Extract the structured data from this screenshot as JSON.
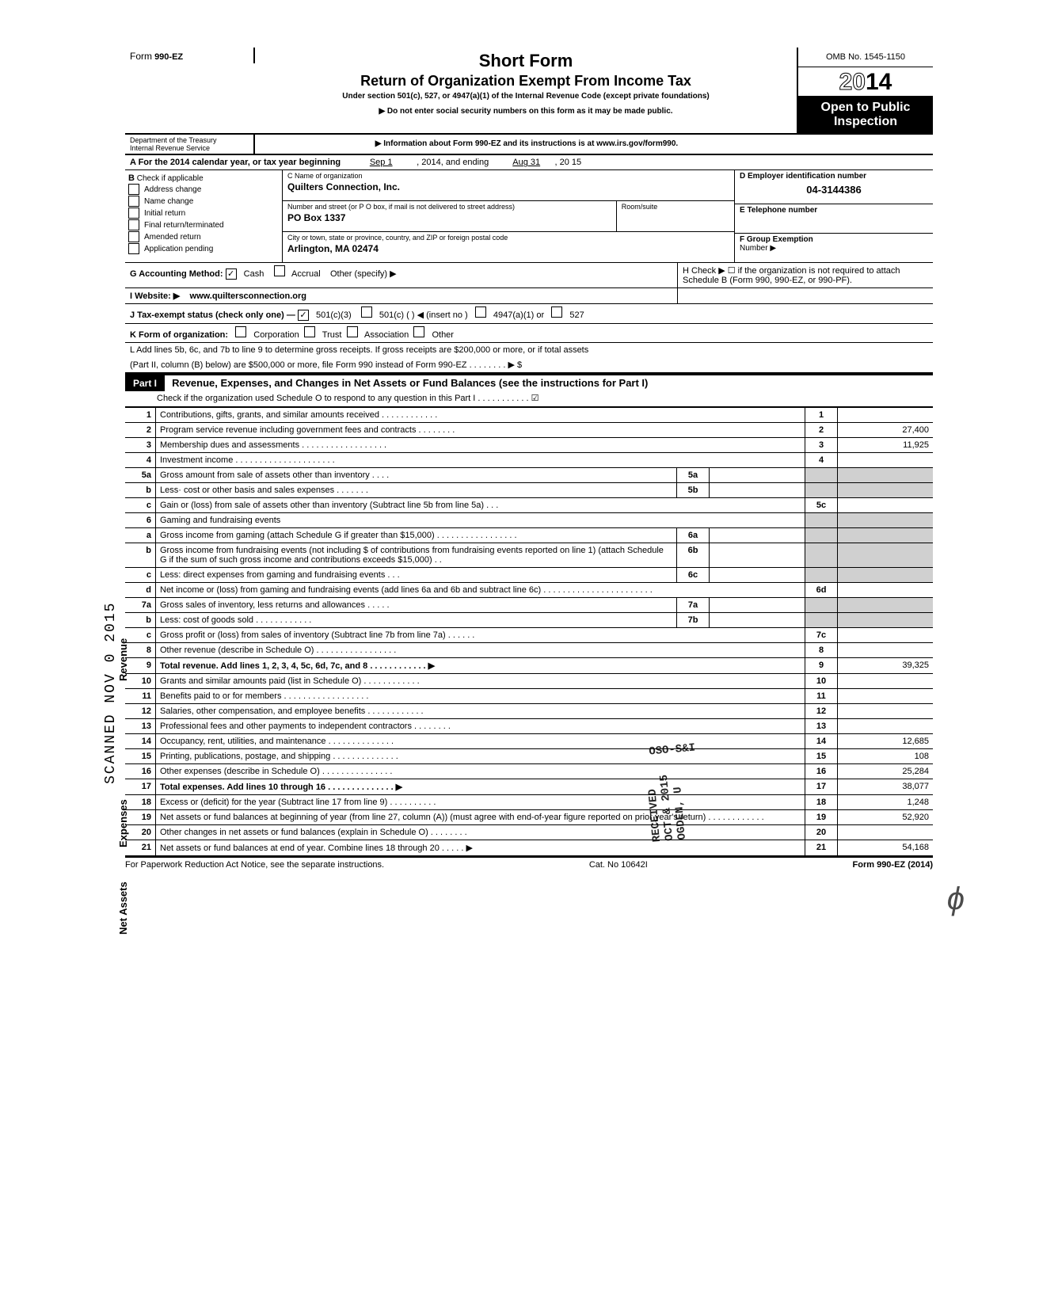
{
  "header": {
    "form_prefix": "Form",
    "form_number": "990-EZ",
    "title": "Short Form",
    "subtitle": "Return of Organization Exempt From Income Tax",
    "under": "Under section 501(c), 527, or 4947(a)(1) of the Internal Revenue Code (except private foundations)",
    "warn1": "▶ Do not enter social security numbers on this form as it may be made public.",
    "warn2": "▶ Information about Form 990-EZ and its instructions is at www.irs.gov/form990.",
    "omb": "OMB No. 1545-1150",
    "year_outline": "20",
    "year_bold": "14",
    "open": "Open to Public Inspection",
    "dept1": "Department of the Treasury",
    "dept2": "Internal Revenue Service"
  },
  "sectionA": {
    "label": "A For the 2014 calendar year, or tax year beginning",
    "begin": "Sep 1",
    "mid": ", 2014, and ending",
    "end": "Aug 31",
    "yr": ", 20   15"
  },
  "sectionB": {
    "header": "B",
    "check": "Check if applicable",
    "items": [
      "Address change",
      "Name change",
      "Initial return",
      "Final return/terminated",
      "Amended return",
      "Application pending"
    ]
  },
  "sectionC": {
    "c_label": "C  Name of organization",
    "c_val": "Quilters Connection, Inc.",
    "street_label": "Number and street (or P O  box, if mail is not delivered to street address)",
    "room_label": "Room/suite",
    "street_val": "PO Box 1337",
    "city_label": "City or town, state or province, country, and ZIP or foreign postal code",
    "city_val": "Arlington, MA 02474"
  },
  "sectionD": {
    "label": "D Employer identification number",
    "val": "04-3144386"
  },
  "sectionE": {
    "label": "E  Telephone number"
  },
  "sectionF": {
    "label": "F  Group Exemption",
    "sub": "Number ▶"
  },
  "lineG": {
    "label": "G  Accounting Method:",
    "cash": "Cash",
    "accrual": "Accrual",
    "other": "Other (specify) ▶",
    "cash_checked": "✓"
  },
  "lineH": {
    "text": "H  Check ▶ ☐ if the organization is not required to attach Schedule B (Form 990, 990-EZ, or 990-PF)."
  },
  "lineI": {
    "label": "I   Website: ▶",
    "val": "www.quiltersconnection.org"
  },
  "lineJ": {
    "label": "J  Tax-exempt status (check only one) —",
    "c3": "501(c)(3)",
    "c3_checked": "✓",
    "c": "501(c) (          ) ◀ (insert no )",
    "a1": "4947(a)(1) or",
    "s527": "527"
  },
  "lineK": {
    "label": "K  Form of organization:",
    "opts": [
      "Corporation",
      "Trust",
      "Association",
      "Other"
    ]
  },
  "lineL": {
    "l1": "L  Add lines 5b, 6c, and 7b to line 9 to determine gross receipts. If gross receipts are $200,000 or more, or if total assets",
    "l2": "(Part II, column (B) below) are $500,000 or more, file Form 990 instead of Form 990-EZ .   .   .   .   .   .   .   .   ▶   $"
  },
  "partI": {
    "tag": "Part I",
    "title": "Revenue, Expenses, and Changes in Net Assets or Fund Balances (see the instructions for Part I)",
    "sub": "Check if the organization used Schedule O to respond to any question in this Part I  .   .   .   .   .   .   .   .   .   .   .   ☑"
  },
  "lines": [
    {
      "no": "1",
      "desc": "Contributions, gifts, grants, and similar amounts received .   .   .   .   .   .   .   .   .   .   .   .",
      "rno": "1",
      "rval": ""
    },
    {
      "no": "2",
      "desc": "Program service revenue including government fees and contracts   .   .   .   .   .   .   .   .",
      "rno": "2",
      "rval": "27,400"
    },
    {
      "no": "3",
      "desc": "Membership dues and assessments .   .   .   .   .   .   .   .   .   .   .   .   .   .   .   .   .   .",
      "rno": "3",
      "rval": "11,925"
    },
    {
      "no": "4",
      "desc": "Investment income    .   .   .   .   .   .   .   .   .   .   .   .   .   .   .   .   .   .   .   .   .",
      "rno": "4",
      "rval": ""
    }
  ],
  "lines5": {
    "a_no": "5a",
    "a_desc": "Gross amount from sale of assets other than inventory   .   .   .   .",
    "a_sub": "5a",
    "b_no": "b",
    "b_desc": "Less· cost or other basis and sales expenses .   .   .   .   .   .   .",
    "b_sub": "5b",
    "c_no": "c",
    "c_desc": "Gain or (loss) from sale of assets other than inventory (Subtract line 5b from line 5a)  .   .   .",
    "c_rno": "5c"
  },
  "lines6": {
    "hdr_no": "6",
    "hdr": "Gaming and fundraising events",
    "a_no": "a",
    "a_desc": "Gross income from gaming (attach Schedule G if greater than $15,000)  .   .   .   .   .   .   .   .   .   .   .   .   .   .   .   .   .",
    "a_sub": "6a",
    "b_no": "b",
    "b_desc": "Gross income from fundraising events (not including  $                       of contributions from fundraising events reported on line 1) (attach Schedule G if the sum of such gross income and contributions exceeds $15,000)  .   .",
    "b_sub": "6b",
    "c_no": "c",
    "c_desc": "Less: direct expenses from gaming and fundraising events   .   .   .",
    "c_sub": "6c",
    "d_no": "d",
    "d_desc": "Net income or (loss) from gaming and fundraising events (add lines 6a and 6b and subtract line 6c)    .   .   .   .   .   .   .   .   .   .   .   .   .   .   .   .   .   .   .   .   .   .   .",
    "d_rno": "6d"
  },
  "lines7": {
    "a_no": "7a",
    "a_desc": "Gross sales of inventory, less returns and allowances  .   .   .   .   .",
    "a_sub": "7a",
    "b_no": "b",
    "b_desc": "Less: cost of goods sold     .   .   .   .   .   .   .   .   .   .   .   .",
    "b_sub": "7b",
    "c_no": "c",
    "c_desc": "Gross profit or (loss) from sales of inventory (Subtract line 7b from line 7a)   .   .   .   .   .   .",
    "c_rno": "7c"
  },
  "lines8_21": [
    {
      "no": "8",
      "desc": "Other revenue (describe in Schedule O) .   .   .   .   .   .   .   .   .   .   .   .   .   .   .   .   .",
      "rno": "8",
      "rval": ""
    },
    {
      "no": "9",
      "desc": "Total revenue. Add lines 1, 2, 3, 4, 5c, 6d, 7c, and 8   .   .   .   .   .   .   .   .   .   .   .   .   ▶",
      "rno": "9",
      "rval": "39,325",
      "bold": true
    },
    {
      "no": "10",
      "desc": "Grants and similar amounts paid (list in Schedule O)   .   .   .   .   .   .   .   .   .   .   .   .",
      "rno": "10",
      "rval": ""
    },
    {
      "no": "11",
      "desc": "Benefits paid to or for members   .   .   .   .   .   .   .   .   .   .   .   .   .   .   .   .   .   .",
      "rno": "11",
      "rval": ""
    },
    {
      "no": "12",
      "desc": "Salaries, other compensation, and employee benefits  .   .   .   .   .   .   .   .   .   .   .   .",
      "rno": "12",
      "rval": ""
    },
    {
      "no": "13",
      "desc": "Professional fees and other payments to independent contractors  .   .   .   .   .   .   .   .",
      "rno": "13",
      "rval": ""
    },
    {
      "no": "14",
      "desc": "Occupancy, rent, utilities, and maintenance    .   .   .   .   .   .   .   .   .   .   .   .   .   .",
      "rno": "14",
      "rval": "12,685"
    },
    {
      "no": "15",
      "desc": "Printing, publications, postage, and shipping  .   .   .   .   .   .   .   .   .   .   .   .   .   .",
      "rno": "15",
      "rval": "108"
    },
    {
      "no": "16",
      "desc": "Other expenses (describe in Schedule O)   .   .   .   .   .   .   .   .   .   .   .   .   .   .   .",
      "rno": "16",
      "rval": "25,284"
    },
    {
      "no": "17",
      "desc": "Total expenses. Add lines 10 through 16   .   .   .   .   .   .   .   .   .   .   .   .   .   .   ▶",
      "rno": "17",
      "rval": "38,077",
      "bold": true
    },
    {
      "no": "18",
      "desc": "Excess or (deficit) for the year (Subtract line 17 from line 9)   .   .   .   .   .   .   .   .   .   .",
      "rno": "18",
      "rval": "1,248"
    },
    {
      "no": "19",
      "desc": "Net assets or fund balances at beginning of year (from line 27, column (A)) (must agree with end-of-year figure reported on prior year's return)    .   .   .   .   .   .   .   .   .   .   .   .",
      "rno": "19",
      "rval": "52,920"
    },
    {
      "no": "20",
      "desc": "Other changes in net assets or fund balances (explain in Schedule O) .   .   .   .   .   .   .   .",
      "rno": "20",
      "rval": ""
    },
    {
      "no": "21",
      "desc": "Net assets or fund balances at end of year. Combine lines 18 through 20   .   .   .   .   .   ▶",
      "rno": "21",
      "rval": "54,168"
    }
  ],
  "footer": {
    "left": "For Paperwork Reduction Act Notice, see the separate instructions.",
    "mid": "Cat. No  10642I",
    "right": "Form 990-EZ (2014)"
  },
  "side": {
    "rev": "Revenue",
    "exp": "Expenses",
    "net": "Net Assets"
  },
  "stamps": {
    "scanned": "SCANNED NOV 0  2015",
    "recv": "RECEIVED",
    "recv_date": "OCT  &  2015",
    "ogden": "OGDEN, U",
    "oso": "OSO-S&I"
  }
}
